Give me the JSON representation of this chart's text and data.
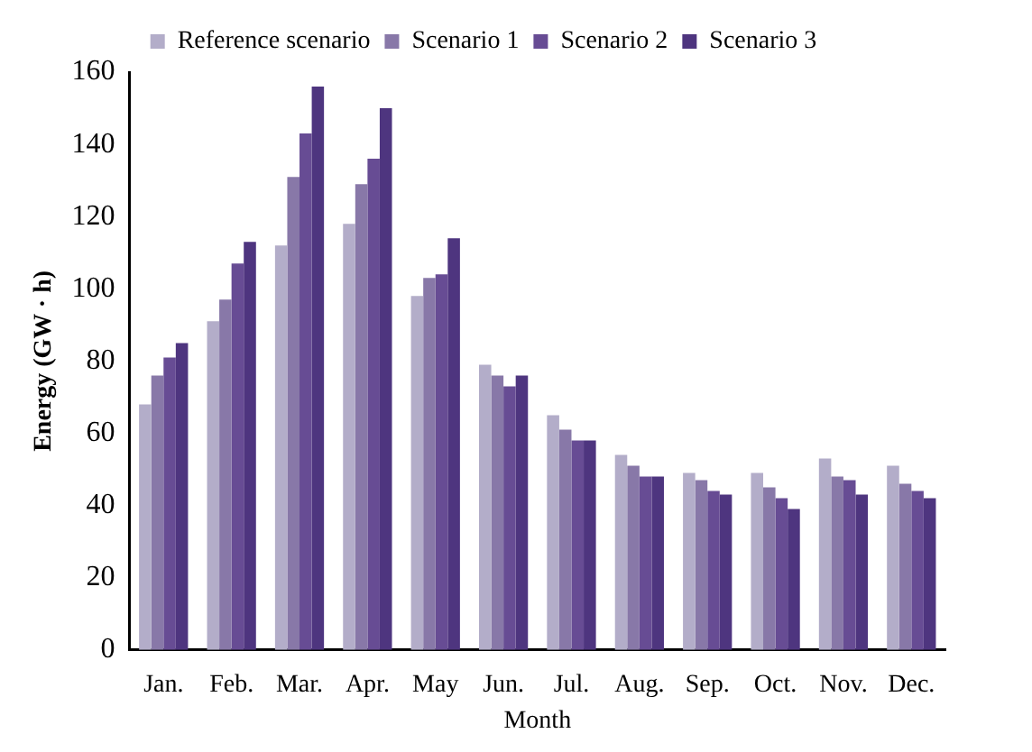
{
  "chart_data": {
    "type": "bar",
    "xlabel": "Month",
    "ylabel": "Energy (GW · h)",
    "categories": [
      "Jan.",
      "Feb.",
      "Mar.",
      "Apr.",
      "May",
      "Jun.",
      "Jul.",
      "Aug.",
      "Sep.",
      "Oct.",
      "Nov.",
      "Dec."
    ],
    "series": [
      {
        "name": "Reference scenario",
        "color": "#b3adc9",
        "values": [
          68,
          91,
          112,
          118,
          98,
          79,
          65,
          54,
          49,
          49,
          53,
          51
        ]
      },
      {
        "name": "Scenario 1",
        "color": "#8878a8",
        "values": [
          76,
          97,
          131,
          129,
          103,
          76,
          61,
          51,
          47,
          45,
          48,
          46
        ]
      },
      {
        "name": "Scenario 2",
        "color": "#674c94",
        "values": [
          81,
          107,
          143,
          136,
          104,
          73,
          58,
          48,
          44,
          42,
          47,
          44
        ]
      },
      {
        "name": "Scenario 3",
        "color": "#4e357f",
        "values": [
          85,
          113,
          156,
          150,
          114,
          76,
          58,
          48,
          43,
          39,
          43,
          42
        ]
      }
    ],
    "ylim": [
      0,
      160
    ],
    "yticks": [
      0,
      20,
      40,
      60,
      80,
      100,
      120,
      140,
      160
    ],
    "grid": false,
    "legend": "top"
  }
}
